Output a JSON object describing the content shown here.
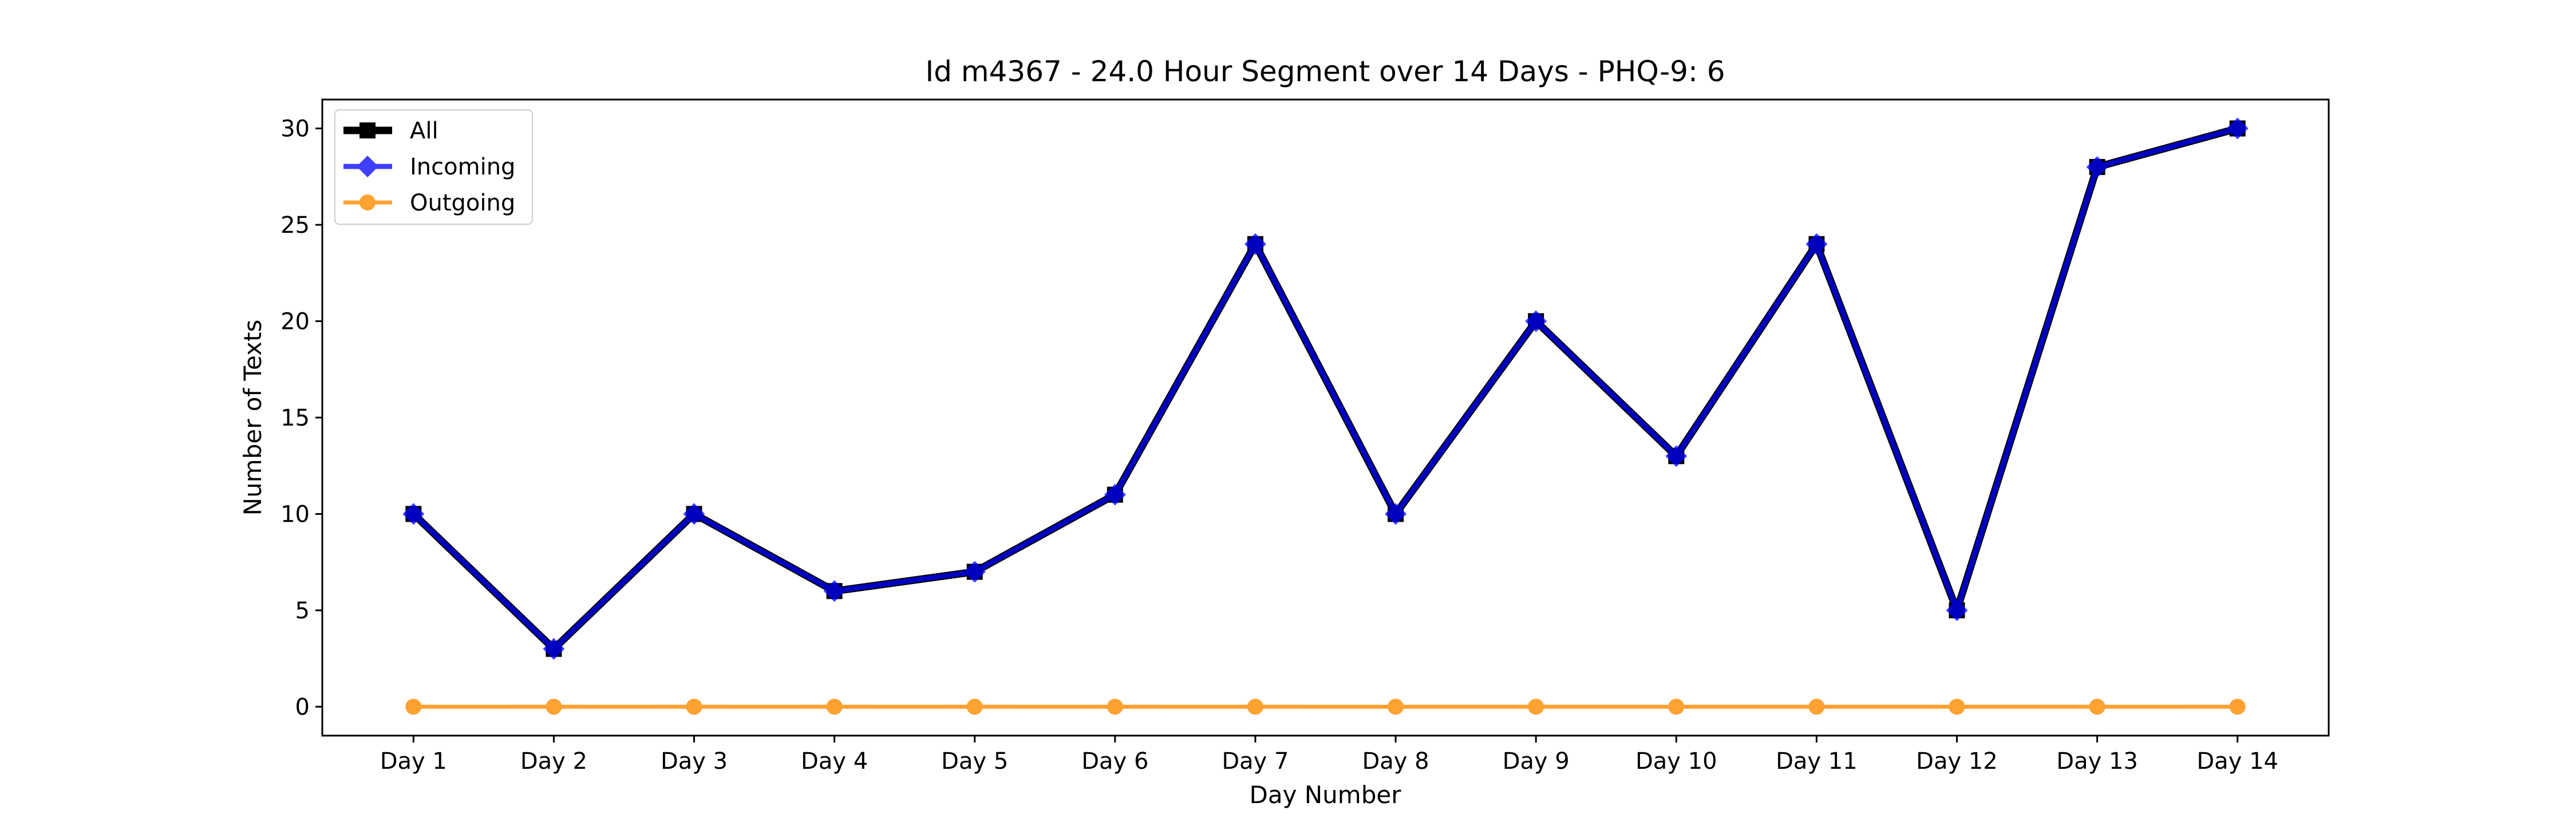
{
  "chart_data": {
    "type": "line",
    "title": "Id m4367 - 24.0 Hour Segment over 14 Days - PHQ-9: 6",
    "xlabel": "Day Number",
    "ylabel": "Number of Texts",
    "categories": [
      "Day 1",
      "Day 2",
      "Day 3",
      "Day 4",
      "Day 5",
      "Day 6",
      "Day 7",
      "Day 8",
      "Day 9",
      "Day 10",
      "Day 11",
      "Day 12",
      "Day 13",
      "Day 14"
    ],
    "ylim": [
      -1.5,
      31.5
    ],
    "yticks": [
      0,
      5,
      10,
      15,
      20,
      25,
      30
    ],
    "grid": false,
    "legend_position": "top-left",
    "series": [
      {
        "name": "All",
        "color": "#000000",
        "marker": "square",
        "values": [
          10,
          3,
          10,
          6,
          7,
          11,
          24,
          10,
          20,
          13,
          24,
          5,
          28,
          30
        ]
      },
      {
        "name": "Incoming",
        "color": "#0000ff",
        "marker": "diamond",
        "values": [
          10,
          3,
          10,
          6,
          7,
          11,
          24,
          10,
          20,
          13,
          24,
          5,
          28,
          30
        ]
      },
      {
        "name": "Outgoing",
        "color": "#ff8c00",
        "marker": "circle",
        "values": [
          0,
          0,
          0,
          0,
          0,
          0,
          0,
          0,
          0,
          0,
          0,
          0,
          0,
          0
        ]
      }
    ]
  }
}
